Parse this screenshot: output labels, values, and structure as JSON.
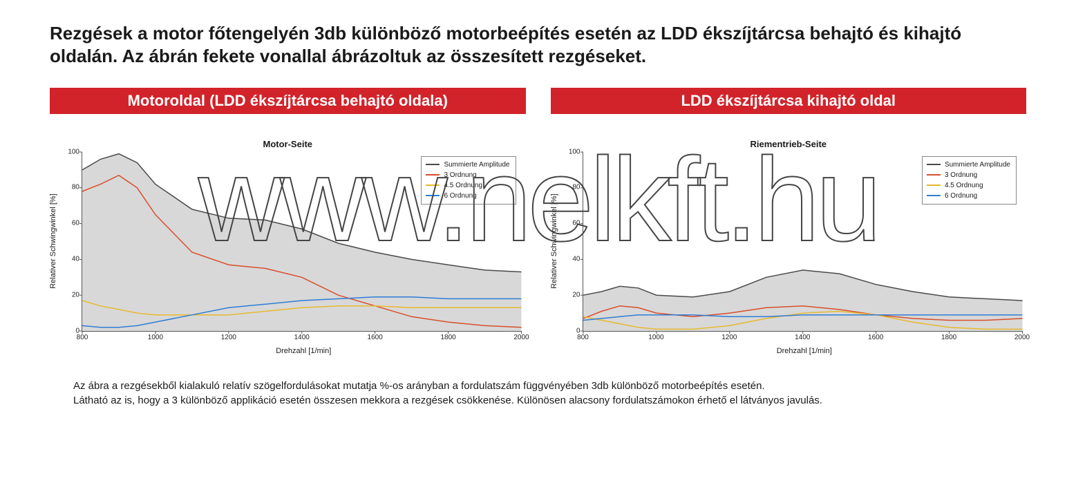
{
  "title": "Rezgések a motor főtengelyén 3db különböző motorbeépítés esetén az LDD ékszíjtárcsa behajtó és kihajtó oldalán. Az ábrán fekete vonallal ábrázoltuk az összesített rezgéseket.",
  "watermark": "www.nelkft.hu",
  "banners": {
    "left": "Motoroldal (LDD ékszíjtárcsa behajtó oldala)",
    "right": "LDD ékszíjtárcsa kihajtó oldal"
  },
  "footer": {
    "line1": "Az ábra a rezgésekből kialakuló relatív szögelfordulásokat mutatja %-os arányban a fordulatszám függvényében 3db különböző motorbeépítés esetén.",
    "line2": "Látható az is, hogy a 3 különböző applikáció esetén összesen mekkora a rezgések csökkenése. Különösen alacsony fordulatszámokon érhető el látványos javulás."
  },
  "chart_common": {
    "xlabel": "Drehzahl [1/min]",
    "ylabel": "Relativer Schwingwinkel [%]",
    "xlim": [
      800,
      2000
    ],
    "ylim": [
      0,
      100
    ],
    "xtick_step": 200,
    "ytick_step": 20,
    "tick_fontsize": 10,
    "label_fontsize": 11,
    "title_fontsize": 13,
    "background": "#ffffff",
    "axis_color": "#555555",
    "line_width": 1.5,
    "legend": {
      "pos": "top-right",
      "items": [
        {
          "label": "Summierte Amplitude",
          "color": "#4a4a4a"
        },
        {
          "label": "3 Ordnung",
          "color": "#d94e2a"
        },
        {
          "label": "4.5 Ordnung",
          "color": "#e7b92e"
        },
        {
          "label": "6 Ordnung",
          "color": "#2f7cd6"
        }
      ]
    }
  },
  "charts": [
    {
      "title": "Motor-Seite",
      "series": {
        "sum": {
          "color": "#4a4a4a",
          "fill": "#d8d8d8",
          "x": [
            800,
            850,
            900,
            950,
            1000,
            1100,
            1200,
            1300,
            1400,
            1500,
            1600,
            1700,
            1800,
            1900,
            2000
          ],
          "y": [
            90,
            96,
            99,
            94,
            82,
            68,
            63,
            62,
            57,
            49,
            44,
            40,
            37,
            34,
            33
          ]
        },
        "ord3": {
          "color": "#d94e2a",
          "x": [
            800,
            850,
            900,
            950,
            1000,
            1100,
            1200,
            1300,
            1400,
            1500,
            1600,
            1700,
            1800,
            1900,
            2000
          ],
          "y": [
            78,
            82,
            87,
            80,
            65,
            44,
            37,
            35,
            30,
            20,
            14,
            8,
            5,
            3,
            2
          ]
        },
        "ord45": {
          "color": "#e7b92e",
          "x": [
            800,
            850,
            900,
            950,
            1000,
            1100,
            1200,
            1300,
            1400,
            1500,
            1600,
            1700,
            1800,
            1900,
            2000
          ],
          "y": [
            17,
            14,
            12,
            10,
            9,
            9,
            9,
            11,
            13,
            14,
            14,
            13,
            13,
            13,
            13
          ]
        },
        "ord6": {
          "color": "#2f7cd6",
          "x": [
            800,
            850,
            900,
            950,
            1000,
            1100,
            1200,
            1300,
            1400,
            1500,
            1600,
            1700,
            1800,
            1900,
            2000
          ],
          "y": [
            3,
            2,
            2,
            3,
            5,
            9,
            13,
            15,
            17,
            18,
            19,
            19,
            18,
            18,
            18
          ]
        }
      }
    },
    {
      "title": "Riementrieb-Seite",
      "series": {
        "sum": {
          "color": "#4a4a4a",
          "fill": "#d8d8d8",
          "x": [
            800,
            850,
            900,
            950,
            1000,
            1100,
            1200,
            1300,
            1400,
            1500,
            1600,
            1700,
            1800,
            1900,
            2000
          ],
          "y": [
            20,
            22,
            25,
            24,
            20,
            19,
            22,
            30,
            34,
            32,
            26,
            22,
            19,
            18,
            17
          ]
        },
        "ord3": {
          "color": "#d94e2a",
          "x": [
            800,
            850,
            900,
            950,
            1000,
            1100,
            1200,
            1300,
            1400,
            1500,
            1600,
            1700,
            1800,
            1900,
            2000
          ],
          "y": [
            7,
            11,
            14,
            13,
            10,
            8,
            10,
            13,
            14,
            12,
            9,
            7,
            6,
            6,
            7
          ]
        },
        "ord45": {
          "color": "#e7b92e",
          "x": [
            800,
            850,
            900,
            950,
            1000,
            1100,
            1200,
            1300,
            1400,
            1500,
            1600,
            1700,
            1800,
            1900,
            2000
          ],
          "y": [
            8,
            6,
            4,
            2,
            1,
            1,
            3,
            7,
            10,
            11,
            9,
            5,
            2,
            1,
            1
          ]
        },
        "ord6": {
          "color": "#2f7cd6",
          "x": [
            800,
            850,
            900,
            950,
            1000,
            1100,
            1200,
            1300,
            1400,
            1500,
            1600,
            1700,
            1800,
            1900,
            2000
          ],
          "y": [
            6,
            7,
            8,
            9,
            9,
            9,
            8,
            8,
            9,
            9,
            9,
            9,
            9,
            9,
            9
          ]
        }
      }
    }
  ]
}
